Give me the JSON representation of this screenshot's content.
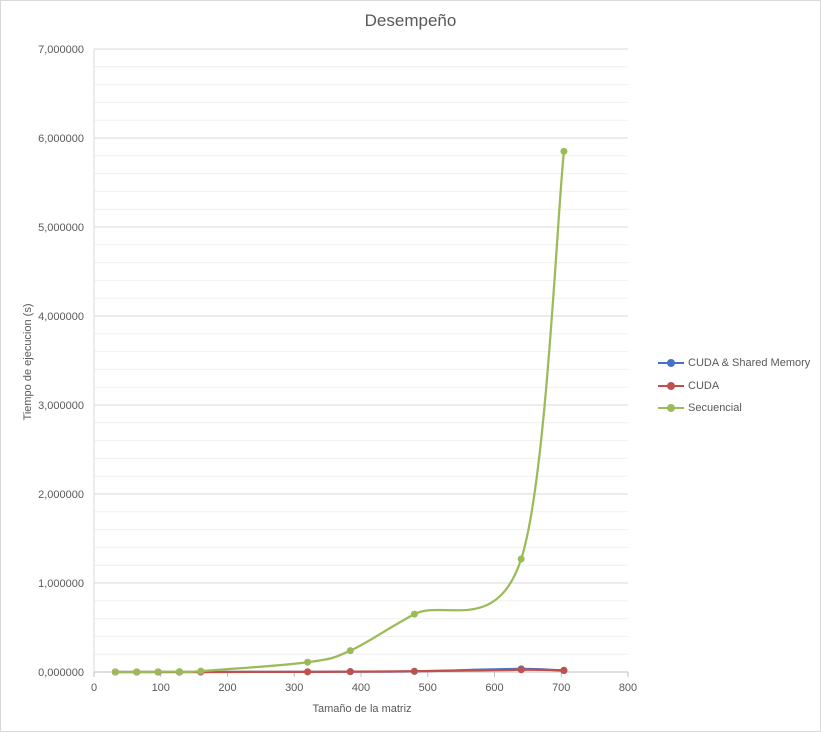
{
  "chart_data": {
    "type": "scatter",
    "title": "Desempeño",
    "xlabel": "Tamaño de la matriz",
    "ylabel": "Tiempo de ejecucion (s)",
    "xlim": [
      0,
      800
    ],
    "ylim": [
      0,
      7
    ],
    "x_ticks": [
      "0",
      "100",
      "200",
      "300",
      "400",
      "500",
      "600",
      "700",
      "800"
    ],
    "y_ticks": [
      "0,000000",
      "1,000000",
      "2,000000",
      "3,000000",
      "4,000000",
      "5,000000",
      "6,000000",
      "7,000000"
    ],
    "grid": "horizontal",
    "smooth_lines": true,
    "legend_position": "right",
    "x": [
      32,
      64,
      96,
      128,
      160,
      320,
      384,
      480,
      640,
      704
    ],
    "series": [
      {
        "name": "CUDA & Shared Memory",
        "color": "#4472c4",
        "values": [
          0.0001,
          0.0002,
          0.0003,
          0.0004,
          0.0006,
          0.002,
          0.004,
          0.007,
          0.035,
          0.015
        ]
      },
      {
        "name": "CUDA",
        "color": "#c0504d",
        "values": [
          0.0001,
          0.0002,
          0.0003,
          0.0004,
          0.0006,
          0.002,
          0.004,
          0.008,
          0.025,
          0.02
        ]
      },
      {
        "name": "Secuencial",
        "color": "#9bbb59",
        "values": [
          0.0003,
          0.001,
          0.002,
          0.004,
          0.01,
          0.11,
          0.24,
          0.65,
          1.27,
          5.85
        ]
      }
    ]
  }
}
